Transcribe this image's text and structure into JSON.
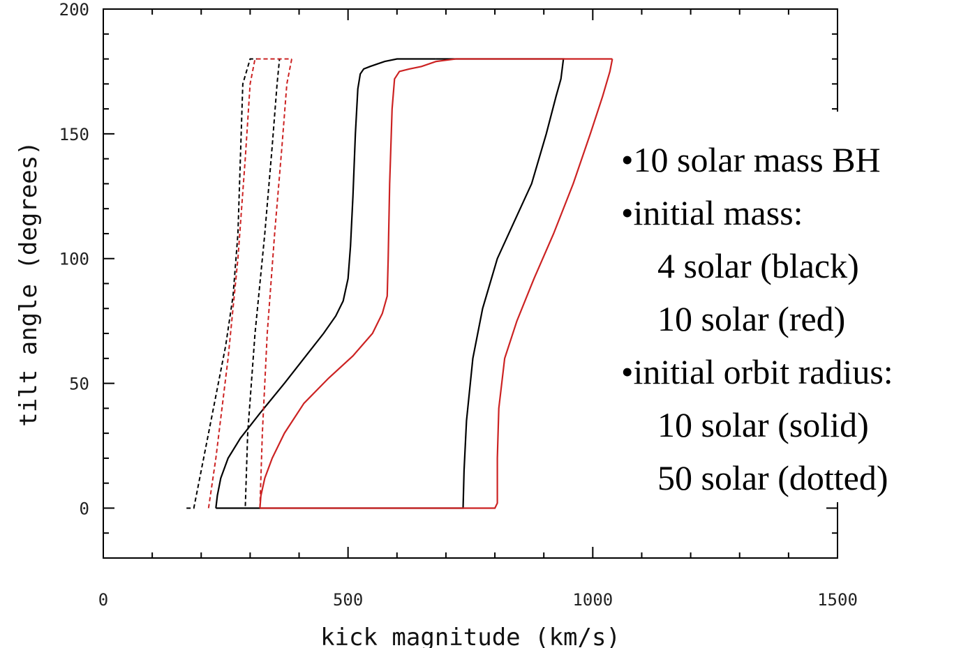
{
  "chart_data": {
    "type": "line",
    "xlabel": "kick magnitude (km/s)",
    "ylabel": "tilt angle (degrees)",
    "xlim": [
      0,
      1500
    ],
    "ylim": [
      -20,
      200
    ],
    "xticks": [
      0,
      500,
      1000,
      1500
    ],
    "yticks": [
      0,
      50,
      100,
      150,
      200
    ],
    "grid": false,
    "series": [
      {
        "color": "#000000",
        "style": "solid",
        "points": [
          [
            230,
            0
          ],
          [
            233,
            5
          ],
          [
            240,
            12
          ],
          [
            255,
            20
          ],
          [
            280,
            28
          ],
          [
            320,
            38
          ],
          [
            370,
            50
          ],
          [
            410,
            60
          ],
          [
            450,
            70
          ],
          [
            475,
            77
          ],
          [
            490,
            83
          ],
          [
            500,
            92
          ],
          [
            505,
            105
          ],
          [
            510,
            125
          ],
          [
            515,
            150
          ],
          [
            520,
            168
          ],
          [
            525,
            174
          ],
          [
            532,
            176
          ],
          [
            545,
            177
          ],
          [
            560,
            178
          ],
          [
            575,
            179
          ],
          [
            600,
            180
          ],
          [
            650,
            180
          ],
          [
            680,
            180
          ]
        ],
        "points2": [
          [
            230,
            0
          ],
          [
            420,
            0
          ],
          [
            640,
            0
          ],
          [
            735,
            0
          ],
          [
            737,
            15
          ],
          [
            742,
            35
          ],
          [
            755,
            60
          ],
          [
            775,
            80
          ],
          [
            805,
            100
          ],
          [
            840,
            115
          ],
          [
            875,
            130
          ],
          [
            905,
            150
          ],
          [
            925,
            165
          ],
          [
            935,
            172
          ],
          [
            940,
            180
          ],
          [
            680,
            180
          ]
        ]
      },
      {
        "color": "#cc2222",
        "style": "solid",
        "points": [
          [
            320,
            0
          ],
          [
            322,
            5
          ],
          [
            330,
            12
          ],
          [
            345,
            20
          ],
          [
            370,
            30
          ],
          [
            410,
            42
          ],
          [
            460,
            52
          ],
          [
            510,
            61
          ],
          [
            550,
            70
          ],
          [
            570,
            78
          ],
          [
            580,
            85
          ],
          [
            582,
            100
          ],
          [
            585,
            130
          ],
          [
            590,
            160
          ],
          [
            595,
            172
          ],
          [
            605,
            175
          ],
          [
            625,
            176
          ],
          [
            650,
            177
          ],
          [
            680,
            179
          ],
          [
            720,
            180
          ],
          [
            800,
            180
          ],
          [
            1040,
            180
          ]
        ],
        "points2": [
          [
            320,
            0
          ],
          [
            500,
            0
          ],
          [
            700,
            0
          ],
          [
            800,
            0
          ],
          [
            805,
            2
          ],
          [
            805,
            20
          ],
          [
            808,
            40
          ],
          [
            820,
            60
          ],
          [
            845,
            75
          ],
          [
            880,
            92
          ],
          [
            920,
            110
          ],
          [
            960,
            130
          ],
          [
            995,
            150
          ],
          [
            1020,
            165
          ],
          [
            1035,
            175
          ],
          [
            1040,
            180
          ]
        ]
      },
      {
        "color": "#000000",
        "style": "dotted",
        "points": [
          [
            170,
            0
          ],
          [
            185,
            0
          ],
          [
            210,
            25
          ],
          [
            230,
            45
          ],
          [
            250,
            65
          ],
          [
            265,
            85
          ],
          [
            275,
            110
          ],
          [
            280,
            140
          ],
          [
            285,
            170
          ],
          [
            300,
            180
          ],
          [
            320,
            180
          ]
        ],
        "points2": [
          [
            280,
            0
          ],
          [
            290,
            0
          ],
          [
            295,
            30
          ],
          [
            310,
            70
          ],
          [
            330,
            110
          ],
          [
            345,
            145
          ],
          [
            355,
            170
          ],
          [
            360,
            180
          ],
          [
            320,
            180
          ]
        ]
      },
      {
        "color": "#cc2222",
        "style": "dotted",
        "points": [
          [
            215,
            0
          ],
          [
            230,
            20
          ],
          [
            255,
            60
          ],
          [
            275,
            100
          ],
          [
            290,
            140
          ],
          [
            300,
            170
          ],
          [
            310,
            180
          ],
          [
            385,
            180
          ]
        ],
        "points2": [
          [
            320,
            0
          ],
          [
            325,
            30
          ],
          [
            335,
            70
          ],
          [
            350,
            110
          ],
          [
            365,
            145
          ],
          [
            375,
            170
          ],
          [
            385,
            180
          ]
        ]
      }
    ],
    "annotations": [
      {
        "text": "•10 solar mass BH",
        "color": "#000000"
      },
      {
        "text": "•initial mass:",
        "color": "#000000"
      },
      {
        "text": "4 solar (black)",
        "color": "#000000"
      },
      {
        "text": "10 solar (red)",
        "color": "#ee0000"
      },
      {
        "text": "•initial orbit radius:",
        "color": "#000000"
      },
      {
        "text": "10 solar (solid)",
        "color": "#000000"
      },
      {
        "text": "50 solar (dotted)",
        "color": "#000000"
      }
    ]
  }
}
